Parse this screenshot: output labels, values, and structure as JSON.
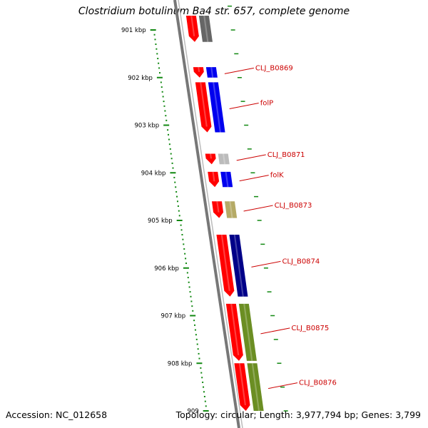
{
  "title": "Clostridium botulinum Ba4 str. 657, complete genome",
  "accession": "Accession: NC_012658",
  "topology": "Topology: circular; Length: 3,977,794 bp; Genes: 3,799",
  "colors": {
    "backbone": "#777777",
    "scale_ticks": "#118811",
    "forward_cds": "#ff0000",
    "label": "#cc0000",
    "leader_line": "#cc0000"
  },
  "scale": {
    "labels": [
      "901 kbp",
      "902 kbp",
      "903 kbp",
      "904 kbp",
      "905 kbp",
      "906 kbp",
      "907 kbp",
      "908 kbp",
      "909"
    ]
  },
  "genes": [
    {
      "label": "",
      "color": "#666666",
      "start": 900.7,
      "end": 901.25
    },
    {
      "label": "CLJ_B0869",
      "color": "#0000ee",
      "start": 901.78,
      "end": 902.0
    },
    {
      "label": "folP",
      "color": "#0000ee",
      "start": 902.1,
      "end": 903.15
    },
    {
      "label": "CLJ_B0871",
      "color": "#bbbbbb",
      "start": 903.6,
      "end": 903.82
    },
    {
      "label": "folK",
      "color": "#0000ee",
      "start": 903.98,
      "end": 904.3
    },
    {
      "label": "CLJ_B0873",
      "color": "#b5aa66",
      "start": 904.6,
      "end": 904.95
    },
    {
      "label": "CLJ_B0874",
      "color": "#000088",
      "start": 905.3,
      "end": 906.6
    },
    {
      "label": "CLJ_B0875",
      "color": "#6b8e23",
      "start": 906.75,
      "end": 907.95
    },
    {
      "label": "CLJ_B0876",
      "color": "#6b8e23",
      "start": 908.0,
      "end": 909.0
    }
  ],
  "forward_genes": [
    {
      "start": 900.7,
      "end": 901.25
    },
    {
      "start": 901.78,
      "end": 902.0
    },
    {
      "start": 902.1,
      "end": 903.15
    },
    {
      "start": 903.6,
      "end": 903.82
    },
    {
      "start": 903.98,
      "end": 904.3
    },
    {
      "start": 904.6,
      "end": 904.95
    },
    {
      "start": 905.3,
      "end": 906.6
    },
    {
      "start": 906.75,
      "end": 907.95
    },
    {
      "start": 908.0,
      "end": 909.0
    }
  ]
}
